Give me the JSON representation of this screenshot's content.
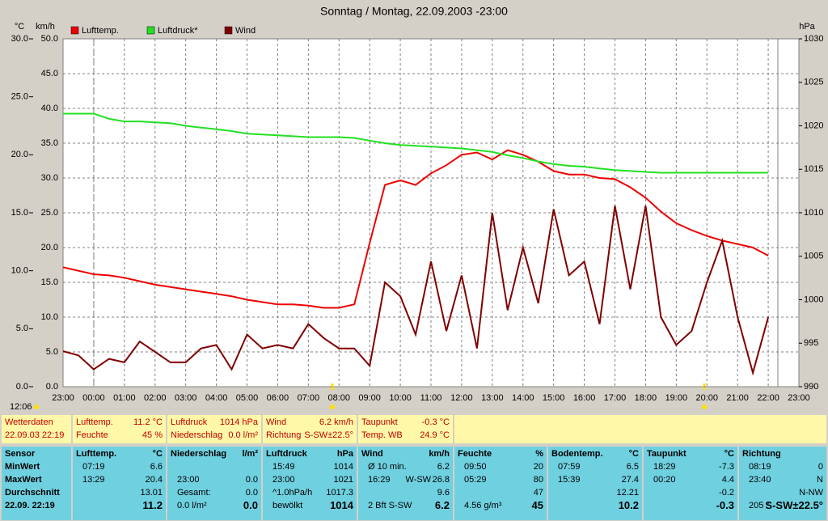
{
  "chart_data": {
    "type": "line",
    "title": "Sonntag / Montag, 22.09.2003  -23:00",
    "y_unit": "°C",
    "y3_unit": "km/h",
    "y2_unit": "hPa",
    "annotation": "12:06",
    "x": [
      0,
      0.5,
      1,
      1.5,
      2,
      2.5,
      3,
      3.5,
      4,
      4.5,
      5,
      5.5,
      6,
      6.5,
      7,
      7.5,
      8,
      8.5,
      9,
      9.5,
      10,
      10.5,
      11,
      11.5,
      12,
      12.5,
      13,
      13.5,
      14,
      14.5,
      15,
      15.5,
      16,
      16.5,
      17,
      17.5,
      18,
      18.5,
      19,
      19.5,
      20,
      20.5,
      21,
      21.5,
      22,
      22.5,
      23
    ],
    "xlim": [
      0,
      24
    ],
    "xticks": [
      {
        "value": 0,
        "label": "23:00"
      },
      {
        "value": 1,
        "label": "00:00"
      },
      {
        "value": 2,
        "label": "01:00"
      },
      {
        "value": 3,
        "label": "02:00"
      },
      {
        "value": 4,
        "label": "03:00"
      },
      {
        "value": 5,
        "label": "04:00"
      },
      {
        "value": 6,
        "label": "05:00"
      },
      {
        "value": 7,
        "label": "06:00"
      },
      {
        "value": 8,
        "label": "07:00"
      },
      {
        "value": 9,
        "label": "08:00"
      },
      {
        "value": 10,
        "label": "09:00"
      },
      {
        "value": 11,
        "label": "10:00"
      },
      {
        "value": 12,
        "label": "11:00"
      },
      {
        "value": 13,
        "label": "12:00"
      },
      {
        "value": 14,
        "label": "13:00"
      },
      {
        "value": 15,
        "label": "14:00"
      },
      {
        "value": 16,
        "label": "15:00"
      },
      {
        "value": 17,
        "label": "16:00"
      },
      {
        "value": 18,
        "label": "17:00"
      },
      {
        "value": 19,
        "label": "18:00"
      },
      {
        "value": 20,
        "label": "19:00"
      },
      {
        "value": 21,
        "label": "20:00"
      },
      {
        "value": 22,
        "label": "21:00"
      },
      {
        "value": 23,
        "label": "22:00"
      },
      {
        "value": 24,
        "label": "23:00"
      }
    ],
    "ylim": [
      0,
      30
    ],
    "yticks": [
      {
        "value": 0,
        "label": "0.0"
      },
      {
        "value": 5,
        "label": "5.0"
      },
      {
        "value": 10,
        "label": "10.0"
      },
      {
        "value": 15,
        "label": "15.0"
      },
      {
        "value": 20,
        "label": "20.0"
      },
      {
        "value": 25,
        "label": "25.0"
      },
      {
        "value": 30,
        "label": "30.0"
      }
    ],
    "y2lim": [
      990,
      1030
    ],
    "y2ticks": [
      990,
      995,
      1000,
      1005,
      1010,
      1015,
      1020,
      1025,
      1030
    ],
    "y3lim": [
      0,
      50
    ],
    "y3ticks": [
      {
        "value": 0,
        "label": "0.0"
      },
      {
        "value": 5,
        "label": "5.0"
      },
      {
        "value": 10,
        "label": "10.0"
      },
      {
        "value": 15,
        "label": "15.0"
      },
      {
        "value": 20,
        "label": "20.0"
      },
      {
        "value": 25,
        "label": "25.0"
      },
      {
        "value": 30,
        "label": "30.0"
      },
      {
        "value": 35,
        "label": "35.0"
      },
      {
        "value": 40,
        "label": "40.0"
      },
      {
        "value": 45,
        "label": "45.0"
      },
      {
        "value": 50,
        "label": "50.0"
      }
    ],
    "grid": true,
    "series": [
      {
        "name": "Lufttemp.",
        "color": "#ee0000",
        "axis": "y",
        "values": [
          10.3,
          10.0,
          9.7,
          9.6,
          9.4,
          9.1,
          8.8,
          8.6,
          8.4,
          8.2,
          8.0,
          7.8,
          7.5,
          7.3,
          7.1,
          7.1,
          7.0,
          6.8,
          6.8,
          7.1,
          12.4,
          17.4,
          17.8,
          17.4,
          18.4,
          19.1,
          20.0,
          20.2,
          19.6,
          20.4,
          20.0,
          19.4,
          18.6,
          18.3,
          18.3,
          18.0,
          17.9,
          17.2,
          16.3,
          15.1,
          14.1,
          13.5,
          13.0,
          12.6,
          12.3,
          12.0,
          11.3
        ]
      },
      {
        "name": "Luftdruck*",
        "color": "#22e022",
        "axis": "y2",
        "values": [
          1021.4,
          1021.4,
          1021.4,
          1020.8,
          1020.5,
          1020.5,
          1020.4,
          1020.3,
          1020.0,
          1019.8,
          1019.6,
          1019.4,
          1019.1,
          1019.0,
          1018.9,
          1018.8,
          1018.7,
          1018.7,
          1018.7,
          1018.6,
          1018.3,
          1018.0,
          1017.8,
          1017.7,
          1017.6,
          1017.5,
          1017.4,
          1017.2,
          1017.0,
          1016.6,
          1016.3,
          1015.9,
          1015.6,
          1015.4,
          1015.3,
          1015.1,
          1014.9,
          1014.8,
          1014.7,
          1014.6,
          1014.6,
          1014.6,
          1014.6,
          1014.6,
          1014.6,
          1014.6,
          1014.6
        ]
      },
      {
        "name": "Wind",
        "color": "#800000",
        "axis": "y3",
        "values": [
          5.1,
          4.5,
          2.5,
          4.0,
          3.5,
          6.5,
          5.0,
          3.5,
          3.5,
          5.5,
          6.0,
          2.5,
          7.5,
          5.5,
          6.0,
          5.5,
          9.0,
          7.0,
          5.5,
          5.5,
          3.0,
          15.0,
          13.0,
          7.5,
          18.0,
          8.0,
          16.0,
          5.5,
          25.0,
          11.0,
          20.0,
          12.0,
          25.5,
          16.0,
          18.0,
          9.0,
          26.0,
          14.0,
          26.0,
          10.0,
          6.0,
          8.0,
          15.0,
          21.0,
          10.0,
          2.0,
          10.0
        ]
      }
    ]
  },
  "current": [
    [
      [
        "Wetterdaten"
      ],
      [
        "22.09.03 22:19"
      ]
    ],
    [
      [
        "Lufttemp.",
        "11.2 °C"
      ],
      [
        "Feuchte",
        "45 %"
      ]
    ],
    [
      [
        "Luftdruck",
        "1014 hPa"
      ],
      [
        "Niederschlag",
        "0.0 l/m²"
      ]
    ],
    [
      [
        "Wind",
        "6.2 km/h"
      ],
      [
        "Richtung",
        "S-SW±22.5°"
      ]
    ],
    [
      [
        "Taupunkt",
        "-0.3 °C"
      ],
      [
        "Temp. WB",
        "24.9 °C"
      ]
    ]
  ],
  "stats": {
    "labels": [
      "Sensor",
      "MinWert",
      "MaxWert",
      "Durchschnitt",
      "22.09. 22:19"
    ],
    "columns": [
      {
        "name": "Lufttemp.",
        "unit": "°C",
        "rows": [
          {
            "time": "07:19",
            "value": "6.6"
          },
          {
            "time": "13:29",
            "value": "20.4"
          },
          {
            "value": "13.01"
          },
          {
            "value": "11.2"
          }
        ]
      },
      {
        "name": "Niederschlag",
        "unit": "l/m²",
        "rows": [
          null,
          {
            "time": "23:00",
            "value": "0.0"
          },
          {
            "time": "Gesamt:",
            "value": "0.0"
          },
          {
            "time": "0.0 l/m²",
            "value": "0.0"
          }
        ]
      },
      {
        "name": "Luftdruck",
        "unit": "hPa",
        "rows": [
          {
            "time": "15:49",
            "value": "1014"
          },
          {
            "time": "23:00",
            "value": "1021"
          },
          {
            "time": "^1.0hPa/h",
            "value": "1017.3"
          },
          {
            "time": "bewölkt",
            "value": "1014"
          }
        ]
      },
      {
        "name": "Wind",
        "unit": "km/h",
        "rows": [
          {
            "time": "Ø 10 min.",
            "value": "6.2"
          },
          {
            "time": "16:29",
            "note": "W-SW",
            "value": "26.8"
          },
          {
            "value": "9.6"
          },
          {
            "time": "2 Bft S-SW",
            "value": "6.2"
          }
        ]
      },
      {
        "name": "Feuchte",
        "unit": "%",
        "rows": [
          {
            "time": "09:50",
            "value": "20"
          },
          {
            "time": "05:29",
            "value": "80"
          },
          {
            "value": "47"
          },
          {
            "time": "4.56 g/m³",
            "value": "45"
          }
        ]
      },
      {
        "name": "Bodentemp.",
        "unit": "°C",
        "rows": [
          {
            "time": "07:59",
            "value": "6.5"
          },
          {
            "time": "15:39",
            "value": "27.4"
          },
          {
            "value": "12.21"
          },
          {
            "value": "10.2"
          }
        ]
      },
      {
        "name": "Taupunkt",
        "unit": "°C",
        "rows": [
          {
            "time": "18:29",
            "value": "-7.3"
          },
          {
            "time": "00:20",
            "value": "4.4"
          },
          {
            "value": "-0.2"
          },
          {
            "value": "-0.3"
          }
        ]
      },
      {
        "name": "Richtung",
        "rows": [
          {
            "time": "08:19",
            "value": "0"
          },
          {
            "time": "23:40",
            "value": "N"
          },
          {
            "value": "N-NW"
          },
          {
            "time": "205 °",
            "value": "S-SW±22.5°"
          }
        ]
      }
    ]
  }
}
